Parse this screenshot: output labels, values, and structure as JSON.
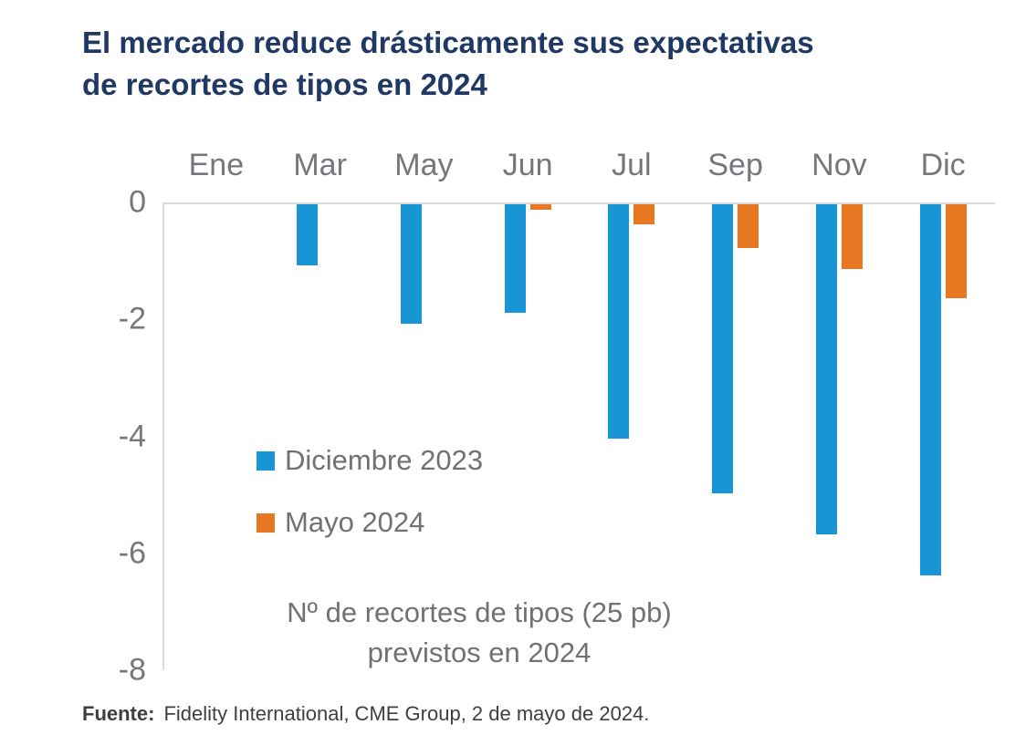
{
  "title": {
    "full": "El mercado reduce drásticamente sus expectativas de recortes de tipos en 2024",
    "line1": "El mercado reduce drásticamente sus expectativas",
    "line2": "de recortes de tipos en 2024"
  },
  "legend": {
    "series1_label": "Diciembre 2023",
    "series2_label": "Mayo 2024"
  },
  "annotation": {
    "line1": "Nº de recortes de tipos (25 pb)",
    "line2": "previstos en 2024"
  },
  "footer": {
    "source_label": "Fuente:",
    "source_text": "Fidelity International, CME Group, 2 de mayo de 2024."
  },
  "colors": {
    "title_text": "#1f3864",
    "axis_text": "#76777c",
    "series_blue": "#1795d4",
    "series_orange": "#e87722",
    "axis_line": "#d9d9d9",
    "footer_text": "#3f3f41"
  },
  "chart_data": {
    "type": "bar",
    "title": "El mercado reduce drásticamente sus expectativas de recortes de tipos en 2024",
    "categories": [
      "Ene",
      "Mar",
      "May",
      "Jun",
      "Jul",
      "Sep",
      "Nov",
      "Dic"
    ],
    "series": [
      {
        "name": "Diciembre 2023",
        "color": "#1795d4",
        "values": [
          0,
          -1.05,
          -2.05,
          -1.85,
          -4.0,
          -4.95,
          -5.65,
          -6.35
        ]
      },
      {
        "name": "Mayo 2024",
        "color": "#e87722",
        "values": [
          0,
          0,
          0,
          -0.1,
          -0.35,
          -0.75,
          -1.1,
          -1.6
        ]
      }
    ],
    "xlabel": "",
    "ylabel": "",
    "yticks": [
      0,
      -2,
      -4,
      -6,
      -8
    ],
    "ylim": [
      -8,
      0
    ],
    "grid": false,
    "legend_position": "inside-left",
    "x_axis_position": "top",
    "note": "Nº de recortes de tipos (25 pb) previstos en 2024"
  }
}
